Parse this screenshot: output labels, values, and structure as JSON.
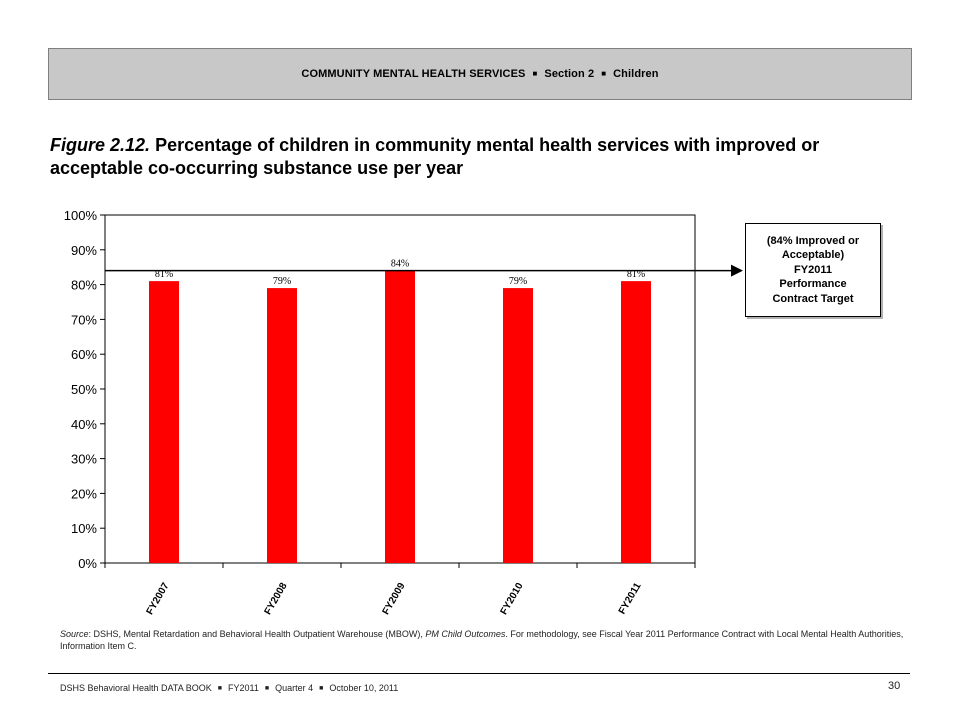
{
  "header": {
    "parts": [
      "COMMUNITY MENTAL HEALTH SERVICES",
      "Section 2",
      "Children"
    ],
    "separator": "■"
  },
  "figure": {
    "number": "Figure 2.12.",
    "title": "Percentage of children in community mental health services with improved or acceptable co-occurring substance use per year"
  },
  "target_note": {
    "lines": [
      "(84% Improved or",
      "Acceptable)",
      "FY2011",
      "Performance",
      "Contract Target"
    ]
  },
  "source": {
    "label": "Source",
    "text_1": ": DSHS, Mental Retardation and Behavioral Health Outpatient Warehouse (MBOW), ",
    "italic": "PM Child Outcomes",
    "text_2": ". For methodology, see Fiscal Year 2011 Performance Contract with Local Mental Health Authorities, Information Item C."
  },
  "footer": {
    "parts": [
      "DSHS Behavioral Health DATA BOOK",
      "FY2011",
      "Quarter 4",
      "October 10, 2011"
    ],
    "separator": "■",
    "page_number": "30"
  },
  "chart_data": {
    "type": "bar",
    "categories": [
      "FY2007",
      "FY2008",
      "FY2009",
      "FY2010",
      "FY2011"
    ],
    "values": [
      81,
      79,
      84,
      79,
      81
    ],
    "data_labels": [
      "81%",
      "79%",
      "84%",
      "79%",
      "81%"
    ],
    "yticks": [
      "0%",
      "10%",
      "20%",
      "30%",
      "40%",
      "50%",
      "60%",
      "70%",
      "80%",
      "90%",
      "100%"
    ],
    "ylim": [
      0,
      100
    ],
    "target_value": 84,
    "bar_color": "#ff0000",
    "grid": false,
    "legend": "none"
  }
}
